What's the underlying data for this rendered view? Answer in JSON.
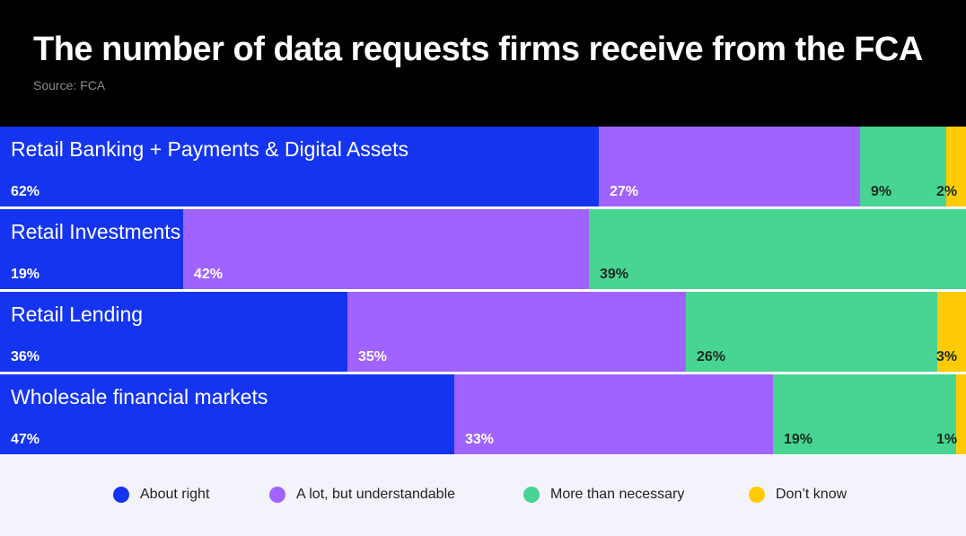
{
  "title": "The number of data requests firms receive from the FCA",
  "source": "Source: FCA",
  "chart_data": {
    "type": "bar",
    "orientation": "horizontal",
    "stacked": true,
    "title": "The number of data requests firms receive from the FCA",
    "categories": [
      "Retail Banking + Payments & Digital Assets",
      "Retail Investments",
      "Retail Lending",
      "Wholesale financial markets"
    ],
    "series": [
      {
        "name": "About right",
        "color": "#1434f0",
        "values": [
          62,
          19,
          36,
          47
        ]
      },
      {
        "name": "A lot, but understandable",
        "color": "#a063ff",
        "values": [
          27,
          42,
          35,
          33
        ]
      },
      {
        "name": "More than necessary",
        "color": "#48d492",
        "values": [
          9,
          39,
          26,
          19
        ]
      },
      {
        "name": "Don’t know",
        "color": "#ffcb05",
        "values": [
          2,
          0,
          3,
          1
        ]
      }
    ],
    "labels": [
      [
        "62%",
        "27%",
        "9%",
        "2%"
      ],
      [
        "19%",
        "42%",
        "39%",
        ""
      ],
      [
        "36%",
        "35%",
        "26%",
        "3%"
      ],
      [
        "47%",
        "33%",
        "19%",
        "1%"
      ]
    ],
    "xlim": [
      0,
      100
    ],
    "legend": "bottom",
    "grid": false
  }
}
